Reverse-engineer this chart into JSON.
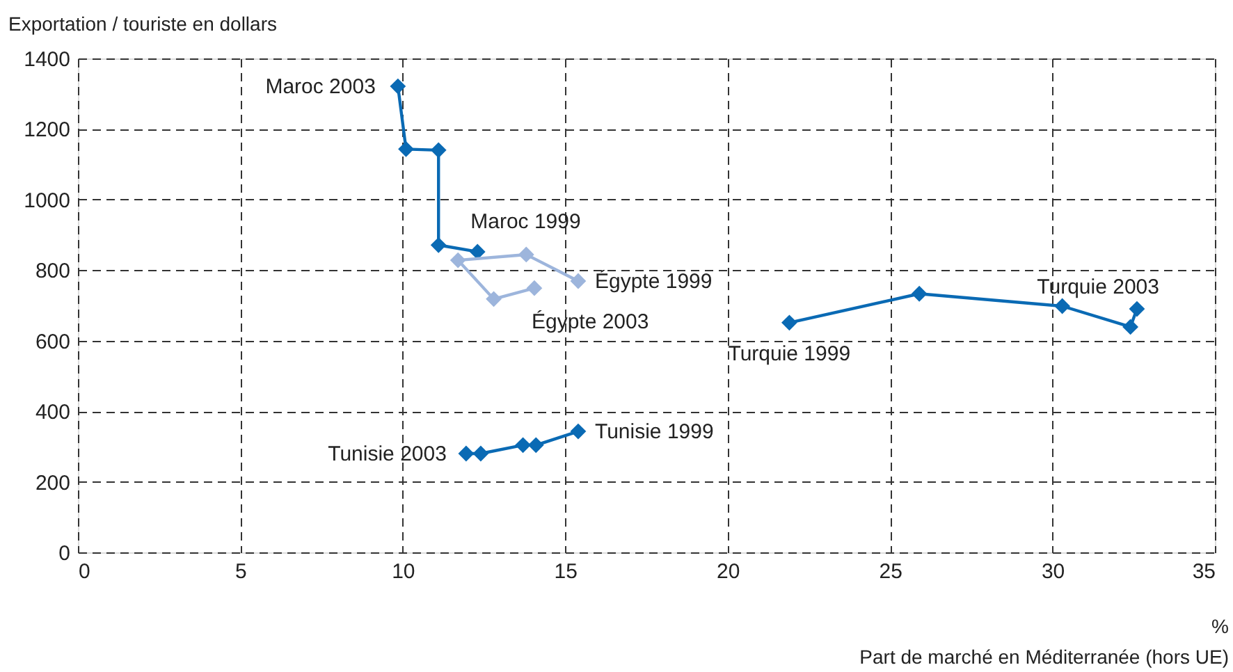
{
  "chart_data": {
    "type": "line",
    "xlabel": "Part de marché en Méditerranée (hors UE)",
    "ylabel": "Exportation / touriste en dollars",
    "xlim": [
      0,
      35
    ],
    "xticks": [
      0,
      5,
      10,
      15,
      20,
      25,
      30,
      35
    ],
    "ylim": [
      0,
      1400
    ],
    "yticks": [
      0,
      200,
      400,
      600,
      800,
      1000,
      1200,
      1400
    ],
    "grid": true,
    "line_style": "solid",
    "marker": "diamond",
    "series": [
      {
        "color": "#0a6ab4",
        "x": [
          12.3,
          11.1,
          11.1,
          10.1,
          9.85
        ],
        "values": [
          852,
          871,
          1140,
          1143,
          1321
        ]
      },
      {
        "color": "#9db5dc",
        "x": [
          15.4,
          13.8,
          11.7,
          12.8,
          14.05
        ],
        "values": [
          769,
          844,
          828,
          718,
          749
        ]
      },
      {
        "color": "#0a6ab4",
        "x": [
          21.9,
          25.9,
          30.3,
          32.4,
          32.6
        ],
        "values": [
          651,
          733,
          698,
          639,
          690
        ]
      },
      {
        "color": "#0a6ab4",
        "x": [
          15.4,
          14.1,
          13.7,
          12.4,
          11.95
        ],
        "values": [
          343,
          304,
          304,
          280,
          280
        ]
      }
    ],
    "annotations": [
      {
        "text": "Maroc 2003",
        "x": 9.85,
        "y": 1321
      },
      {
        "text": "Maroc 1999",
        "x": 12.3,
        "y": 852
      },
      {
        "text": "Égypte 1999",
        "x": 15.4,
        "y": 769
      },
      {
        "text": "Égypte 2003",
        "x": 14.05,
        "y": 749
      },
      {
        "text": "Turquie 1999",
        "x": 21.9,
        "y": 651
      },
      {
        "text": "Turquie 2003",
        "x": 32.6,
        "y": 690
      },
      {
        "text": "Tunisie 2003",
        "x": 11.95,
        "y": 280
      },
      {
        "text": "Tunisie 1999",
        "x": 15.4,
        "y": 343
      },
      "%"
    ]
  }
}
